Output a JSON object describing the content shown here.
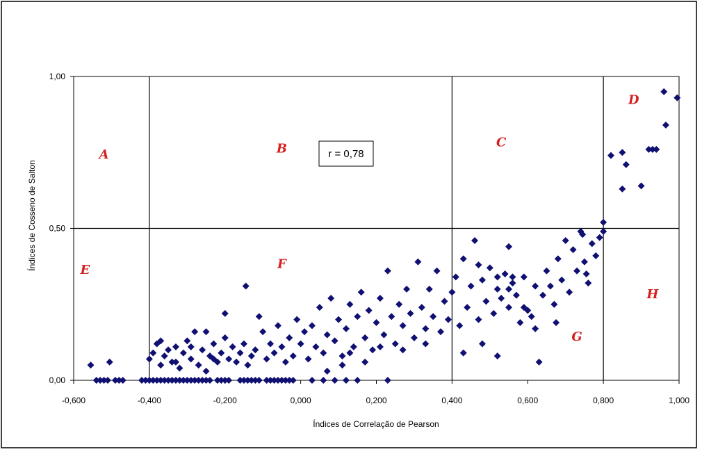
{
  "colors": {
    "marker": "#101073",
    "region_label": "#d42020",
    "frame": "#000000",
    "background": "#ffffff"
  },
  "chart_data": {
    "type": "scatter",
    "title": "",
    "xlabel": "Índices de Correlação de Pearson",
    "ylabel": "Índices de Cosseno de Salton",
    "xlim": [
      -0.6,
      1.0
    ],
    "ylim": [
      0.0,
      1.0
    ],
    "x_ticks": [
      "-0,600",
      "-0,400",
      "-0,200",
      "0,000",
      "0,200",
      "0,400",
      "0,600",
      "0,800",
      "1,000"
    ],
    "y_ticks": [
      "0,00",
      "0,50",
      "1,00"
    ],
    "thresholds": {
      "x": [
        -0.4,
        0.4,
        0.8
      ],
      "y": [
        0.5
      ]
    },
    "grid": false,
    "marker": "diamond",
    "annotation": "r = 0,78",
    "regions": [
      {
        "label": "A",
        "x": -0.52,
        "y": 0.73
      },
      {
        "label": "B",
        "x": -0.05,
        "y": 0.75
      },
      {
        "label": "C",
        "x": 0.53,
        "y": 0.77
      },
      {
        "label": "D",
        "x": 0.88,
        "y": 0.91
      },
      {
        "label": "E",
        "x": -0.57,
        "y": 0.35
      },
      {
        "label": "F",
        "x": -0.05,
        "y": 0.37
      },
      {
        "label": "G",
        "x": 0.73,
        "y": 0.13
      },
      {
        "label": "H",
        "x": 0.93,
        "y": 0.27
      }
    ],
    "points": [
      [
        -0.555,
        0.05
      ],
      [
        -0.505,
        0.06
      ],
      [
        -0.54,
        0.0
      ],
      [
        -0.53,
        0.0
      ],
      [
        -0.52,
        0.0
      ],
      [
        -0.51,
        0.0
      ],
      [
        -0.49,
        0.0
      ],
      [
        -0.48,
        0.0
      ],
      [
        -0.47,
        0.0
      ],
      [
        -0.42,
        0.0
      ],
      [
        -0.41,
        0.0
      ],
      [
        -0.4,
        0.0
      ],
      [
        -0.39,
        0.0
      ],
      [
        -0.38,
        0.0
      ],
      [
        -0.37,
        0.0
      ],
      [
        -0.36,
        0.0
      ],
      [
        -0.35,
        0.0
      ],
      [
        -0.34,
        0.0
      ],
      [
        -0.33,
        0.0
      ],
      [
        -0.32,
        0.0
      ],
      [
        -0.31,
        0.0
      ],
      [
        -0.3,
        0.0
      ],
      [
        -0.29,
        0.0
      ],
      [
        -0.28,
        0.0
      ],
      [
        -0.27,
        0.0
      ],
      [
        -0.26,
        0.0
      ],
      [
        -0.25,
        0.0
      ],
      [
        -0.24,
        0.0
      ],
      [
        -0.22,
        0.0
      ],
      [
        -0.21,
        0.0
      ],
      [
        -0.2,
        0.0
      ],
      [
        -0.19,
        0.0
      ],
      [
        -0.16,
        0.0
      ],
      [
        -0.15,
        0.0
      ],
      [
        -0.14,
        0.0
      ],
      [
        -0.13,
        0.0
      ],
      [
        -0.12,
        0.0
      ],
      [
        -0.11,
        0.0
      ],
      [
        -0.09,
        0.0
      ],
      [
        -0.08,
        0.0
      ],
      [
        -0.07,
        0.0
      ],
      [
        -0.06,
        0.0
      ],
      [
        -0.05,
        0.0
      ],
      [
        -0.04,
        0.0
      ],
      [
        -0.03,
        0.0
      ],
      [
        -0.02,
        0.0
      ],
      [
        0.03,
        0.0
      ],
      [
        0.06,
        0.0
      ],
      [
        0.09,
        0.0
      ],
      [
        0.12,
        0.0
      ],
      [
        0.15,
        0.0
      ],
      [
        0.23,
        0.0
      ],
      [
        -0.4,
        0.07
      ],
      [
        -0.39,
        0.09
      ],
      [
        -0.38,
        0.12
      ],
      [
        -0.37,
        0.05
      ],
      [
        -0.36,
        0.08
      ],
      [
        -0.35,
        0.1
      ],
      [
        -0.34,
        0.06
      ],
      [
        -0.33,
        0.11
      ],
      [
        -0.32,
        0.04
      ],
      [
        -0.31,
        0.09
      ],
      [
        -0.3,
        0.13
      ],
      [
        -0.29,
        0.07
      ],
      [
        -0.28,
        0.16
      ],
      [
        -0.27,
        0.05
      ],
      [
        -0.26,
        0.1
      ],
      [
        -0.25,
        0.03
      ],
      [
        -0.24,
        0.08
      ],
      [
        -0.23,
        0.12
      ],
      [
        -0.22,
        0.06
      ],
      [
        -0.21,
        0.09
      ],
      [
        -0.2,
        0.14
      ],
      [
        -0.19,
        0.07
      ],
      [
        -0.18,
        0.11
      ],
      [
        -0.17,
        0.06
      ],
      [
        -0.16,
        0.09
      ],
      [
        -0.15,
        0.12
      ],
      [
        -0.14,
        0.05
      ],
      [
        -0.13,
        0.08
      ],
      [
        -0.12,
        0.1
      ],
      [
        -0.11,
        0.21
      ],
      [
        -0.1,
        0.16
      ],
      [
        -0.09,
        0.07
      ],
      [
        -0.08,
        0.12
      ],
      [
        -0.07,
        0.09
      ],
      [
        -0.06,
        0.18
      ],
      [
        -0.05,
        0.11
      ],
      [
        -0.04,
        0.06
      ],
      [
        -0.03,
        0.14
      ],
      [
        -0.02,
        0.08
      ],
      [
        -0.01,
        0.2
      ],
      [
        0.0,
        0.12
      ],
      [
        0.01,
        0.16
      ],
      [
        -0.145,
        0.31
      ],
      [
        -0.2,
        0.22
      ],
      [
        -0.25,
        0.16
      ],
      [
        -0.37,
        0.13
      ],
      [
        -0.33,
        0.06
      ],
      [
        -0.29,
        0.11
      ],
      [
        -0.23,
        0.07
      ],
      [
        0.02,
        0.07
      ],
      [
        0.03,
        0.18
      ],
      [
        0.04,
        0.11
      ],
      [
        0.05,
        0.24
      ],
      [
        0.06,
        0.09
      ],
      [
        0.07,
        0.15
      ],
      [
        0.08,
        0.27
      ],
      [
        0.09,
        0.13
      ],
      [
        0.1,
        0.2
      ],
      [
        0.11,
        0.08
      ],
      [
        0.12,
        0.17
      ],
      [
        0.13,
        0.25
      ],
      [
        0.14,
        0.11
      ],
      [
        0.15,
        0.21
      ],
      [
        0.16,
        0.29
      ],
      [
        0.17,
        0.14
      ],
      [
        0.18,
        0.23
      ],
      [
        0.19,
        0.1
      ],
      [
        0.2,
        0.19
      ],
      [
        0.21,
        0.27
      ],
      [
        0.22,
        0.15
      ],
      [
        0.23,
        0.36
      ],
      [
        0.24,
        0.21
      ],
      [
        0.25,
        0.12
      ],
      [
        0.26,
        0.25
      ],
      [
        0.27,
        0.18
      ],
      [
        0.28,
        0.3
      ],
      [
        0.29,
        0.22
      ],
      [
        0.3,
        0.14
      ],
      [
        0.31,
        0.39
      ],
      [
        0.32,
        0.24
      ],
      [
        0.33,
        0.17
      ],
      [
        0.34,
        0.3
      ],
      [
        0.35,
        0.21
      ],
      [
        0.36,
        0.36
      ],
      [
        0.37,
        0.16
      ],
      [
        0.38,
        0.26
      ],
      [
        0.39,
        0.2
      ],
      [
        0.4,
        0.29
      ],
      [
        0.41,
        0.34
      ],
      [
        0.42,
        0.18
      ],
      [
        0.43,
        0.4
      ],
      [
        0.44,
        0.24
      ],
      [
        0.45,
        0.31
      ],
      [
        0.46,
        0.46
      ],
      [
        0.47,
        0.2
      ],
      [
        0.48,
        0.33
      ],
      [
        0.49,
        0.26
      ],
      [
        0.5,
        0.37
      ],
      [
        0.51,
        0.22
      ],
      [
        0.52,
        0.3
      ],
      [
        0.53,
        0.27
      ],
      [
        0.54,
        0.35
      ],
      [
        0.55,
        0.24
      ],
      [
        0.56,
        0.32
      ],
      [
        0.57,
        0.28
      ],
      [
        0.58,
        0.19
      ],
      [
        0.59,
        0.34
      ],
      [
        0.6,
        0.23
      ],
      [
        0.61,
        0.21
      ],
      [
        0.62,
        0.17
      ],
      [
        0.63,
        0.06
      ],
      [
        0.64,
        0.28
      ],
      [
        0.65,
        0.36
      ],
      [
        0.66,
        0.31
      ],
      [
        0.67,
        0.25
      ],
      [
        0.68,
        0.4
      ],
      [
        0.69,
        0.33
      ],
      [
        0.7,
        0.46
      ],
      [
        0.71,
        0.29
      ],
      [
        0.72,
        0.43
      ],
      [
        0.73,
        0.36
      ],
      [
        0.74,
        0.49
      ],
      [
        0.75,
        0.39
      ],
      [
        0.76,
        0.32
      ],
      [
        0.77,
        0.45
      ],
      [
        0.78,
        0.41
      ],
      [
        0.79,
        0.47
      ],
      [
        0.745,
        0.48
      ],
      [
        0.755,
        0.35
      ],
      [
        0.675,
        0.19
      ],
      [
        0.52,
        0.08
      ],
      [
        0.47,
        0.38
      ],
      [
        0.55,
        0.44
      ],
      [
        0.8,
        0.52
      ],
      [
        0.8,
        0.49
      ],
      [
        0.82,
        0.74
      ],
      [
        0.85,
        0.75
      ],
      [
        0.86,
        0.71
      ],
      [
        0.85,
        0.63
      ],
      [
        0.9,
        0.64
      ],
      [
        0.92,
        0.76
      ],
      [
        0.93,
        0.76
      ],
      [
        0.94,
        0.76
      ],
      [
        0.965,
        0.84
      ],
      [
        0.96,
        0.95
      ],
      [
        0.995,
        0.93
      ],
      [
        0.55,
        0.3
      ],
      [
        0.56,
        0.34
      ],
      [
        0.52,
        0.34
      ],
      [
        0.62,
        0.31
      ],
      [
        0.59,
        0.24
      ],
      [
        0.48,
        0.12
      ],
      [
        0.43,
        0.09
      ],
      [
        0.33,
        0.12
      ],
      [
        0.27,
        0.1
      ],
      [
        0.21,
        0.11
      ],
      [
        0.17,
        0.06
      ],
      [
        0.11,
        0.05
      ],
      [
        0.07,
        0.03
      ],
      [
        0.13,
        0.09
      ]
    ]
  }
}
